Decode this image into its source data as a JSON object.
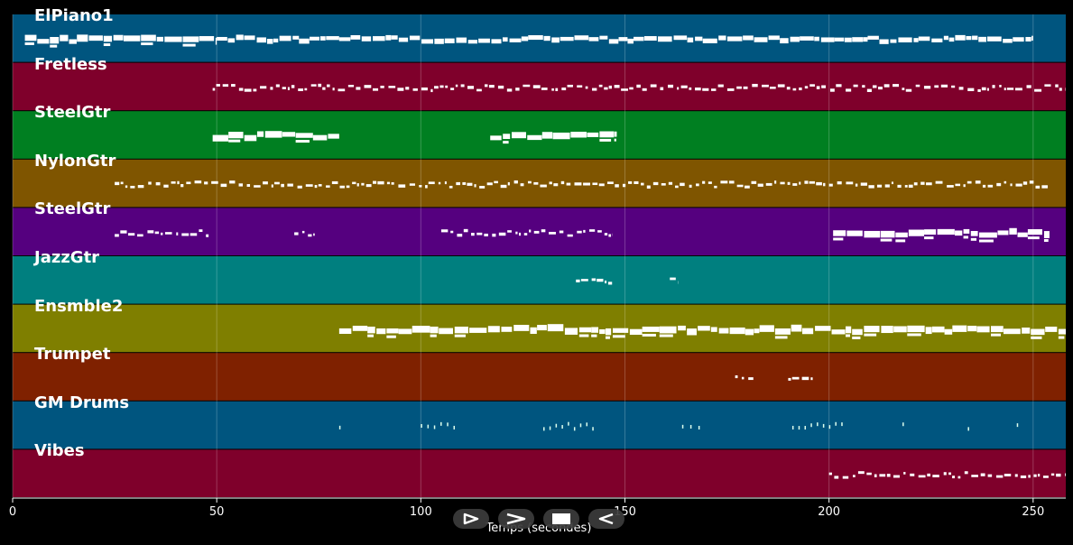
{
  "xaxis": {
    "label": "Temps (secondes)",
    "min": 0,
    "max": 258,
    "ticks": [
      "0",
      "50",
      "100",
      "150",
      "200",
      "250"
    ]
  },
  "tracks": [
    {
      "name": "ElPiano1",
      "color": "#00557f",
      "notes": [
        [
          3,
          50,
          "dense"
        ],
        [
          50,
          250,
          "medium"
        ]
      ]
    },
    {
      "name": "Fretless",
      "color": "#7f002b",
      "notes": [
        [
          49,
          258,
          "light"
        ]
      ]
    },
    {
      "name": "SteelGtr",
      "color": "#007f21",
      "notes": [
        [
          49,
          80,
          "dense"
        ],
        [
          117,
          148,
          "dense"
        ]
      ]
    },
    {
      "name": "NylonGtr",
      "color": "#7f5500",
      "notes": [
        [
          25,
          254,
          "light"
        ]
      ]
    },
    {
      "name": "SteelGtr",
      "color": "#55007f",
      "notes": [
        [
          25,
          48,
          "light"
        ],
        [
          69,
          74,
          "light"
        ],
        [
          105,
          147,
          "light"
        ],
        [
          201,
          254,
          "dense"
        ]
      ]
    },
    {
      "name": "JazzGtr",
      "color": "#007f7f",
      "notes": [
        [
          138,
          147,
          "light"
        ],
        [
          161,
          163,
          "light"
        ]
      ]
    },
    {
      "name": "Ensmble2",
      "color": "#7f7f00",
      "notes": [
        [
          80,
          258,
          "dense"
        ]
      ]
    },
    {
      "name": "Trumpet",
      "color": "#7f2100",
      "notes": [
        [
          177,
          182,
          "light"
        ],
        [
          190,
          196,
          "light"
        ]
      ]
    },
    {
      "name": "GM Drums",
      "color": "#00557f",
      "notes": [
        [
          80,
          81,
          "tick"
        ],
        [
          100,
          108,
          "tick"
        ],
        [
          130,
          142,
          "tick"
        ],
        [
          164,
          168,
          "tick"
        ],
        [
          191,
          203,
          "tick"
        ],
        [
          218,
          219,
          "tick"
        ],
        [
          234,
          235,
          "tick"
        ],
        [
          246,
          247,
          "tick"
        ]
      ]
    },
    {
      "name": "Vibes",
      "color": "#7f002b",
      "notes": [
        [
          200,
          258,
          "light"
        ]
      ]
    }
  ],
  "controls": [
    {
      "name": "play-outline-icon",
      "label": "play"
    },
    {
      "name": "chevron-right-icon",
      "label": "forward"
    },
    {
      "name": "stop-icon",
      "label": "stop"
    },
    {
      "name": "rewind-outline-icon",
      "label": "back"
    }
  ]
}
